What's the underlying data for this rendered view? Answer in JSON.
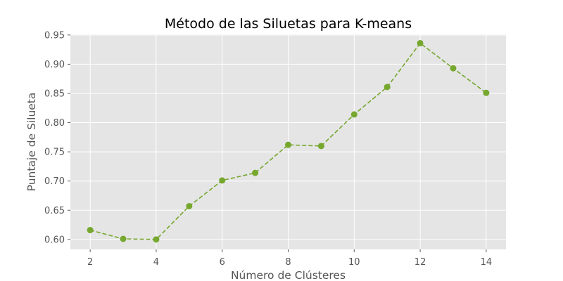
{
  "chart_data": {
    "type": "line",
    "title": "Método de las Siluetas para K-means",
    "xlabel": "Número de Clústeres",
    "ylabel": "Puntaje de Silueta",
    "xlim": [
      1.4,
      14.6
    ],
    "ylim": [
      0.583,
      0.951
    ],
    "xticks": [
      2,
      4,
      6,
      8,
      10,
      12,
      14
    ],
    "yticks": [
      0.6,
      0.65,
      0.7,
      0.75,
      0.8,
      0.85,
      0.9,
      0.95
    ],
    "grid": true,
    "series": [
      {
        "x": [
          2,
          3,
          4,
          5,
          6,
          7,
          8,
          9,
          10,
          11,
          12,
          13,
          14
        ],
        "values": [
          0.616,
          0.601,
          0.6,
          0.657,
          0.701,
          0.714,
          0.762,
          0.76,
          0.814,
          0.861,
          0.936,
          0.893,
          0.851
        ],
        "color": "#76a72e",
        "line_style": "dashed",
        "marker": "circle"
      }
    ],
    "plot_background": "#e5e5e5"
  }
}
